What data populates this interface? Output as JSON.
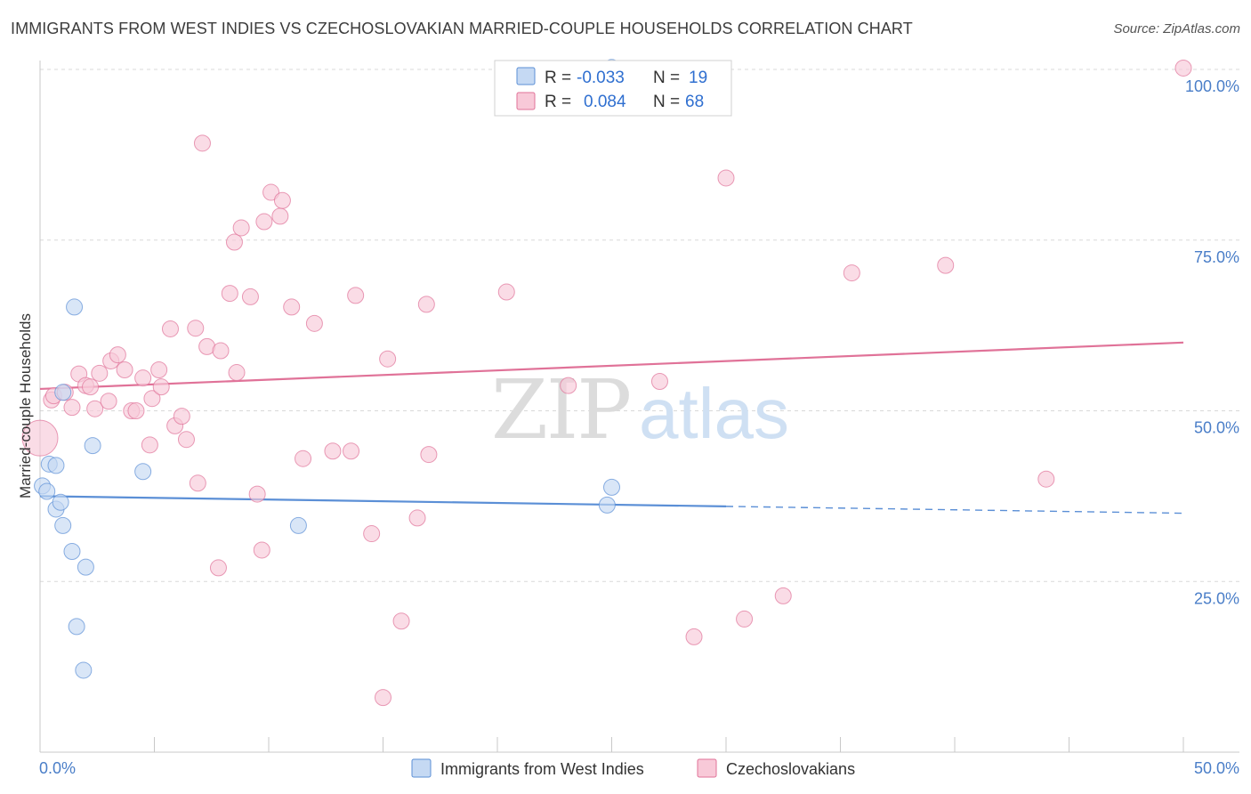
{
  "title": "IMMIGRANTS FROM WEST INDIES VS CZECHOSLOVAKIAN MARRIED-COUPLE HOUSEHOLDS CORRELATION CHART",
  "source": "Source: ZipAtlas.com",
  "watermark": {
    "zip": "ZIP",
    "atlas": "atlas"
  },
  "colors": {
    "blue": "#5b8fd6",
    "blue_fill": "#c5d9f3",
    "pink": "#e07298",
    "pink_fill": "#f8c9d8",
    "grid": "#d9d9d9",
    "tick": "#4a7ec8"
  },
  "legend": {
    "rows": [
      {
        "r_label": "R =",
        "r_value": "-0.033",
        "n_label": "N =",
        "n_value": "19"
      },
      {
        "r_label": "R =",
        "r_value": "0.084",
        "n_label": "N =",
        "n_value": "68"
      }
    ]
  },
  "chart_data": {
    "type": "scatter",
    "ylabel": "Married-couple Households",
    "xlim": [
      0,
      50
    ],
    "ylim": [
      0,
      103
    ],
    "x_tick_labels": [
      "0.0%",
      "50.0%"
    ],
    "y_ticks": [
      25,
      50,
      75,
      100
    ],
    "y_tick_labels": [
      "25.0%",
      "50.0%",
      "75.0%",
      "100.0%"
    ],
    "grid": "horizontal dashed",
    "legend_placement": "top-center",
    "series": [
      {
        "name": "Immigrants from West Indies",
        "color": "#5b8fd6",
        "trend": {
          "x": [
            0,
            30,
            50
          ],
          "y": [
            37.5,
            36.0,
            35.0
          ],
          "solid_until": 30
        },
        "points": [
          {
            "x": 0.1,
            "y": 39.0,
            "r": 9
          },
          {
            "x": 0.3,
            "y": 38.2,
            "r": 9
          },
          {
            "x": 0.4,
            "y": 42.2,
            "r": 9
          },
          {
            "x": 0.7,
            "y": 42.0,
            "r": 9
          },
          {
            "x": 0.7,
            "y": 35.6,
            "r": 9
          },
          {
            "x": 0.9,
            "y": 36.6,
            "r": 9
          },
          {
            "x": 1.0,
            "y": 33.2,
            "r": 9
          },
          {
            "x": 1.0,
            "y": 52.7,
            "r": 9
          },
          {
            "x": 1.4,
            "y": 29.4,
            "r": 9
          },
          {
            "x": 1.5,
            "y": 65.2,
            "r": 9
          },
          {
            "x": 1.6,
            "y": 18.4,
            "r": 9
          },
          {
            "x": 1.9,
            "y": 12.0,
            "r": 9
          },
          {
            "x": 2.0,
            "y": 27.1,
            "r": 9
          },
          {
            "x": 2.3,
            "y": 44.9,
            "r": 9
          },
          {
            "x": 4.5,
            "y": 41.1,
            "r": 9
          },
          {
            "x": 11.3,
            "y": 33.2,
            "r": 9
          },
          {
            "x": 24.8,
            "y": 36.2,
            "r": 9
          },
          {
            "x": 25.0,
            "y": 38.8,
            "r": 9
          },
          {
            "x": 25.0,
            "y": 100.3,
            "r": 9
          }
        ]
      },
      {
        "name": "Czechoslovakians",
        "color": "#e07298",
        "trend": {
          "x": [
            0,
            50
          ],
          "y": [
            53.2,
            60.0
          ]
        },
        "points": [
          {
            "x": 0.0,
            "y": 46.0,
            "r": 20
          },
          {
            "x": 0.5,
            "y": 51.6,
            "r": 9
          },
          {
            "x": 0.6,
            "y": 52.2,
            "r": 9
          },
          {
            "x": 1.1,
            "y": 52.7,
            "r": 9
          },
          {
            "x": 1.4,
            "y": 50.5,
            "r": 9
          },
          {
            "x": 1.7,
            "y": 55.4,
            "r": 9
          },
          {
            "x": 2.0,
            "y": 53.7,
            "r": 9
          },
          {
            "x": 2.2,
            "y": 53.5,
            "r": 9
          },
          {
            "x": 2.4,
            "y": 50.3,
            "r": 9
          },
          {
            "x": 2.6,
            "y": 55.5,
            "r": 9
          },
          {
            "x": 3.0,
            "y": 51.4,
            "r": 9
          },
          {
            "x": 3.1,
            "y": 57.3,
            "r": 9
          },
          {
            "x": 3.4,
            "y": 58.2,
            "r": 9
          },
          {
            "x": 3.7,
            "y": 56.0,
            "r": 9
          },
          {
            "x": 4.0,
            "y": 50.0,
            "r": 9
          },
          {
            "x": 4.2,
            "y": 50.0,
            "r": 9
          },
          {
            "x": 4.5,
            "y": 54.8,
            "r": 9
          },
          {
            "x": 4.8,
            "y": 45.0,
            "r": 9
          },
          {
            "x": 4.9,
            "y": 51.8,
            "r": 9
          },
          {
            "x": 5.2,
            "y": 56.0,
            "r": 9
          },
          {
            "x": 5.3,
            "y": 53.5,
            "r": 9
          },
          {
            "x": 5.7,
            "y": 62.0,
            "r": 9
          },
          {
            "x": 5.9,
            "y": 47.8,
            "r": 9
          },
          {
            "x": 6.2,
            "y": 49.2,
            "r": 9
          },
          {
            "x": 6.4,
            "y": 45.8,
            "r": 9
          },
          {
            "x": 6.8,
            "y": 62.1,
            "r": 9
          },
          {
            "x": 6.9,
            "y": 39.4,
            "r": 9
          },
          {
            "x": 7.1,
            "y": 89.2,
            "r": 9
          },
          {
            "x": 7.3,
            "y": 59.4,
            "r": 9
          },
          {
            "x": 7.8,
            "y": 27.0,
            "r": 9
          },
          {
            "x": 7.9,
            "y": 58.8,
            "r": 9
          },
          {
            "x": 8.3,
            "y": 67.2,
            "r": 9
          },
          {
            "x": 8.5,
            "y": 74.7,
            "r": 9
          },
          {
            "x": 8.6,
            "y": 55.6,
            "r": 9
          },
          {
            "x": 8.8,
            "y": 76.8,
            "r": 9
          },
          {
            "x": 9.2,
            "y": 66.7,
            "r": 9
          },
          {
            "x": 9.5,
            "y": 37.8,
            "r": 9
          },
          {
            "x": 9.7,
            "y": 29.6,
            "r": 9
          },
          {
            "x": 9.8,
            "y": 77.7,
            "r": 9
          },
          {
            "x": 10.1,
            "y": 82.0,
            "r": 9
          },
          {
            "x": 10.5,
            "y": 78.5,
            "r": 9
          },
          {
            "x": 10.6,
            "y": 80.8,
            "r": 9
          },
          {
            "x": 11.0,
            "y": 65.2,
            "r": 9
          },
          {
            "x": 11.5,
            "y": 43.0,
            "r": 9
          },
          {
            "x": 12.0,
            "y": 62.8,
            "r": 9
          },
          {
            "x": 12.8,
            "y": 44.1,
            "r": 9
          },
          {
            "x": 13.6,
            "y": 44.1,
            "r": 9
          },
          {
            "x": 13.8,
            "y": 66.9,
            "r": 9
          },
          {
            "x": 14.5,
            "y": 32.0,
            "r": 9
          },
          {
            "x": 15.0,
            "y": 8.0,
            "r": 9
          },
          {
            "x": 15.2,
            "y": 57.6,
            "r": 9
          },
          {
            "x": 15.8,
            "y": 19.2,
            "r": 9
          },
          {
            "x": 16.5,
            "y": 34.3,
            "r": 9
          },
          {
            "x": 17.0,
            "y": 43.6,
            "r": 9
          },
          {
            "x": 16.9,
            "y": 65.6,
            "r": 9
          },
          {
            "x": 20.4,
            "y": 67.4,
            "r": 9
          },
          {
            "x": 23.1,
            "y": 53.7,
            "r": 9
          },
          {
            "x": 27.1,
            "y": 54.3,
            "r": 9
          },
          {
            "x": 28.6,
            "y": 16.9,
            "r": 9
          },
          {
            "x": 30.0,
            "y": 84.1,
            "r": 9
          },
          {
            "x": 30.8,
            "y": 19.5,
            "r": 9
          },
          {
            "x": 32.5,
            "y": 22.9,
            "r": 9
          },
          {
            "x": 35.5,
            "y": 70.2,
            "r": 9
          },
          {
            "x": 39.6,
            "y": 71.3,
            "r": 9
          },
          {
            "x": 44.0,
            "y": 40.0,
            "r": 9
          },
          {
            "x": 50.0,
            "y": 100.2,
            "r": 9
          }
        ]
      }
    ]
  }
}
